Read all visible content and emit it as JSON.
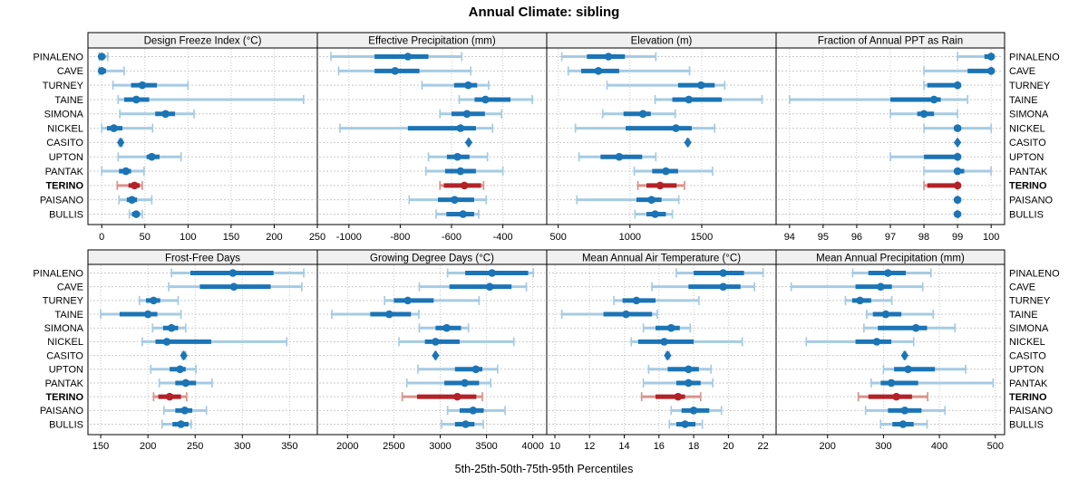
{
  "title": "Annual Climate: sibling",
  "caption": "5th-25th-50th-75th-95th Percentiles",
  "sites": [
    "PINALENO",
    "CAVE",
    "TURNEY",
    "TAINE",
    "SIMONA",
    "NICKEL",
    "CASITO",
    "UPTON",
    "PANTAK",
    "TERINO",
    "PAISANO",
    "BULLIS"
  ],
  "highlight_site": "TERINO",
  "diamond_site": "CASITO",
  "colors": {
    "blue": "#1b74b5",
    "light_blue": "#a6cbe3",
    "red": "#b22227",
    "light_red": "#d9938c",
    "grid": "#c9c9c9",
    "header_bg": "#f0f0f0",
    "border": "#000000"
  },
  "chart_data": [
    {
      "type": "percentile-dotplot",
      "title": "Design Freeze Index (°C)",
      "row": 0,
      "col": 0,
      "xlim": [
        -16,
        250
      ],
      "ticks": [
        0,
        50,
        100,
        150,
        200,
        250
      ],
      "percentile_labels": [
        "p5",
        "p25",
        "p50",
        "p75",
        "p95"
      ],
      "values": [
        [
          -3,
          -2,
          0,
          3,
          7
        ],
        [
          -3,
          -2,
          0,
          5,
          26
        ],
        [
          13,
          34,
          47,
          64,
          100
        ],
        [
          19,
          26,
          40,
          55,
          234
        ],
        [
          21,
          62,
          74,
          85,
          107
        ],
        [
          0,
          6,
          14,
          24,
          59
        ],
        [
          20,
          21,
          22,
          23,
          24
        ],
        [
          19,
          52,
          58,
          67,
          92
        ],
        [
          0,
          20,
          28,
          34,
          49
        ],
        [
          18,
          31,
          38,
          44,
          47
        ],
        [
          20,
          29,
          35,
          41,
          58
        ],
        [
          32,
          35,
          40,
          44,
          47
        ]
      ]
    },
    {
      "type": "percentile-dotplot",
      "title": "Effective Precipitation (mm)",
      "row": 0,
      "col": 1,
      "xlim": [
        -1123,
        -229
      ],
      "ticks": [
        -1000,
        -800,
        -600,
        -400
      ],
      "values": [
        [
          -1070,
          -900,
          -770,
          -690,
          -560
        ],
        [
          -1040,
          -900,
          -820,
          -725,
          -525
        ],
        [
          -715,
          -590,
          -535,
          -500,
          -455
        ],
        [
          -570,
          -510,
          -468,
          -370,
          -285
        ],
        [
          -645,
          -600,
          -540,
          -470,
          -405
        ],
        [
          -1035,
          -770,
          -565,
          -505,
          -440
        ],
        [
          -535,
          -534,
          -533,
          -532,
          -531
        ],
        [
          -690,
          -618,
          -577,
          -530,
          -460
        ],
        [
          -700,
          -625,
          -565,
          -505,
          -400
        ],
        [
          -645,
          -630,
          -550,
          -485,
          -475
        ],
        [
          -765,
          -653,
          -588,
          -512,
          -465
        ],
        [
          -660,
          -620,
          -555,
          -512,
          -494
        ]
      ]
    },
    {
      "type": "percentile-dotplot",
      "title": "Elevation (m)",
      "row": 0,
      "col": 2,
      "xlim": [
        420,
        2018
      ],
      "ticks": [
        500,
        1000,
        1500
      ],
      "values": [
        [
          525,
          700,
          850,
          965,
          1180
        ],
        [
          570,
          660,
          780,
          925,
          1415
        ],
        [
          840,
          1335,
          1495,
          1590,
          1660
        ],
        [
          1175,
          1295,
          1410,
          1640,
          1920
        ],
        [
          810,
          955,
          1090,
          1145,
          1315
        ],
        [
          620,
          970,
          1320,
          1430,
          1590
        ],
        [
          1395,
          1400,
          1403,
          1406,
          1410
        ],
        [
          645,
          795,
          925,
          1085,
          1180
        ],
        [
          1030,
          1155,
          1250,
          1335,
          1575
        ],
        [
          1055,
          1115,
          1210,
          1325,
          1380
        ],
        [
          630,
          1045,
          1150,
          1220,
          1340
        ],
        [
          1035,
          1115,
          1175,
          1250,
          1295
        ]
      ]
    },
    {
      "type": "percentile-dotplot",
      "title": "Fraction of Annual PPT as Rain",
      "row": 0,
      "col": 3,
      "xlim": [
        93.6,
        100.4
      ],
      "ticks": [
        94,
        95,
        96,
        97,
        98,
        99,
        100
      ],
      "values": [
        [
          99,
          99.8,
          100,
          100,
          100
        ],
        [
          98,
          99.3,
          100,
          100,
          100
        ],
        [
          98,
          98.1,
          99,
          99,
          99
        ],
        [
          94,
          97,
          98.3,
          98.5,
          99.3
        ],
        [
          97,
          97.8,
          98,
          98.3,
          99
        ],
        [
          98,
          98.9,
          99,
          99.1,
          100
        ],
        [
          99,
          99,
          99,
          99,
          99
        ],
        [
          97,
          98,
          99,
          99,
          99
        ],
        [
          98,
          98.9,
          99,
          99.2,
          100
        ],
        [
          98,
          98.1,
          99,
          99,
          99
        ],
        [
          99,
          99,
          99,
          99,
          99
        ],
        [
          99,
          99,
          99,
          99,
          99
        ]
      ]
    },
    {
      "type": "percentile-dotplot",
      "title": "Frost-Free Days",
      "row": 1,
      "col": 0,
      "xlim": [
        136.5,
        379.4
      ],
      "ticks": [
        150,
        200,
        250,
        300,
        350
      ],
      "values": [
        [
          225,
          245,
          290,
          333,
          365
        ],
        [
          222,
          255,
          291,
          330,
          363
        ],
        [
          191,
          198,
          206,
          213,
          232
        ],
        [
          150,
          170,
          200,
          210,
          235
        ],
        [
          205,
          216,
          225,
          232,
          240
        ],
        [
          194,
          208,
          220,
          267,
          347
        ],
        [
          236,
          237,
          238,
          239,
          240
        ],
        [
          203,
          223,
          234,
          240,
          251
        ],
        [
          212,
          229,
          240,
          251,
          268
        ],
        [
          206,
          211,
          223,
          235,
          241
        ],
        [
          217,
          229,
          239,
          247,
          262
        ],
        [
          215,
          226,
          235,
          243,
          246
        ]
      ]
    },
    {
      "type": "percentile-dotplot",
      "title": "Growing Degree Days (°C)",
      "row": 1,
      "col": 1,
      "xlim": [
        1674,
        4150
      ],
      "ticks": [
        2000,
        2500,
        3000,
        3500,
        4000
      ],
      "values": [
        [
          3080,
          3270,
          3560,
          3950,
          4005
        ],
        [
          2775,
          3100,
          3535,
          3770,
          3930
        ],
        [
          2400,
          2500,
          2650,
          2930,
          3420
        ],
        [
          1830,
          2245,
          2450,
          2685,
          2770
        ],
        [
          2775,
          2950,
          3070,
          3225,
          3305
        ],
        [
          2555,
          2835,
          2950,
          3210,
          3795
        ],
        [
          2940,
          2945,
          2950,
          2955,
          2960
        ],
        [
          2760,
          3160,
          3385,
          3455,
          3620
        ],
        [
          2640,
          3045,
          3265,
          3420,
          3545
        ],
        [
          2590,
          2750,
          3185,
          3390,
          3455
        ],
        [
          3080,
          3210,
          3355,
          3470,
          3700
        ],
        [
          3015,
          3160,
          3275,
          3370,
          3465
        ]
      ]
    },
    {
      "type": "percentile-dotplot",
      "title": "Mean Annual Air Temperature (°C)",
      "row": 1,
      "col": 2,
      "xlim": [
        9.53,
        22.75
      ],
      "ticks": [
        10,
        12,
        14,
        16,
        18,
        20,
        22
      ],
      "values": [
        [
          17.0,
          18.0,
          19.7,
          20.9,
          22.0
        ],
        [
          15.6,
          17.7,
          19.7,
          20.7,
          21.5
        ],
        [
          13.4,
          13.9,
          14.7,
          15.8,
          18.3
        ],
        [
          10.4,
          12.8,
          14.1,
          15.6,
          15.9
        ],
        [
          15.1,
          15.8,
          16.7,
          17.2,
          17.8
        ],
        [
          14.4,
          14.8,
          16.3,
          18.0,
          20.8
        ],
        [
          16.4,
          16.45,
          16.5,
          16.55,
          16.6
        ],
        [
          15.4,
          16.5,
          17.7,
          18.3,
          19.0
        ],
        [
          15.1,
          17.0,
          17.7,
          18.4,
          19.1
        ],
        [
          15.0,
          15.8,
          17.1,
          17.5,
          18.4
        ],
        [
          16.7,
          17.3,
          18.0,
          18.9,
          19.6
        ],
        [
          16.6,
          17.0,
          17.5,
          18.1,
          18.5
        ]
      ]
    },
    {
      "type": "percentile-dotplot",
      "title": "Mean Annual Precipitation (mm)",
      "row": 1,
      "col": 3,
      "xlim": [
        108,
        516.6
      ],
      "ticks": [
        200,
        300,
        400,
        500
      ],
      "values": [
        [
          245,
          273,
          308,
          340,
          385
        ],
        [
          135,
          250,
          295,
          315,
          370
        ],
        [
          232,
          244,
          258,
          278,
          315
        ],
        [
          270,
          281,
          304,
          332,
          389
        ],
        [
          265,
          290,
          358,
          378,
          428
        ],
        [
          162,
          250,
          288,
          314,
          354
        ],
        [
          336,
          337,
          338,
          339,
          340
        ],
        [
          300,
          319,
          344,
          392,
          447
        ],
        [
          278,
          295,
          314,
          362,
          496
        ],
        [
          255,
          273,
          323,
          351,
          379
        ],
        [
          268,
          308,
          338,
          368,
          410
        ],
        [
          295,
          316,
          335,
          354,
          378
        ]
      ]
    }
  ]
}
